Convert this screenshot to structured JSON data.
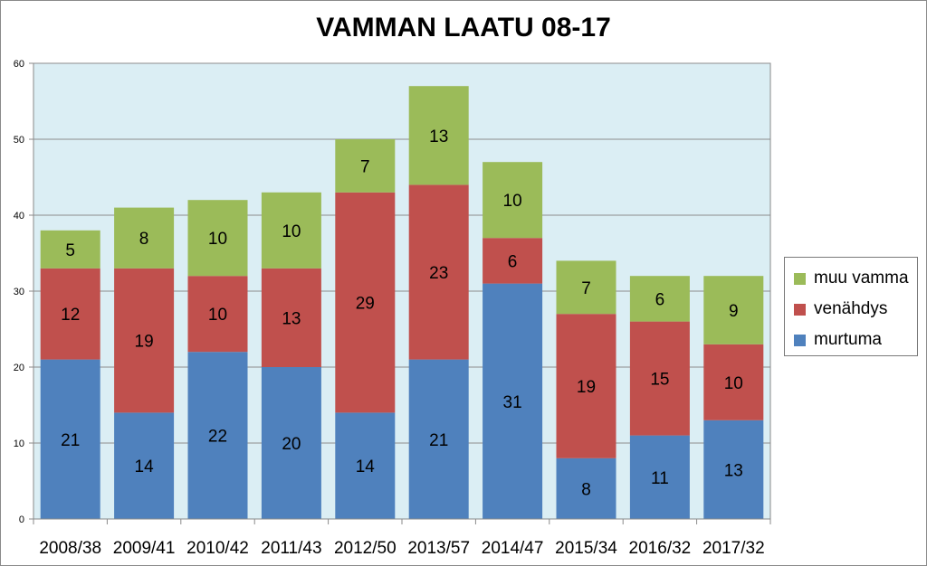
{
  "chart_data": {
    "type": "bar",
    "stacked": true,
    "title": "VAMMAN LAATU 08-17",
    "categories": [
      "2008/38",
      "2009/41",
      "2010/42",
      "2011/43",
      "2012/50",
      "2013/57",
      "2014/47",
      "2015/34",
      "2016/32",
      "2017/32"
    ],
    "series": [
      {
        "name": "murtuma",
        "color": "#4f81bd",
        "values": [
          21,
          14,
          22,
          20,
          14,
          21,
          31,
          8,
          11,
          13
        ]
      },
      {
        "name": "venähdys",
        "color": "#c0504d",
        "values": [
          12,
          19,
          10,
          13,
          29,
          23,
          6,
          19,
          15,
          10
        ]
      },
      {
        "name": "muu vamma",
        "color": "#9bbb59",
        "values": [
          5,
          8,
          10,
          10,
          7,
          13,
          10,
          7,
          6,
          9
        ]
      }
    ],
    "ylim": [
      0,
      60
    ],
    "yticks": [
      0,
      10,
      20,
      30,
      40,
      50,
      60
    ],
    "grid": true,
    "plot_background": "#dbeef4",
    "legend_position": "right",
    "legend_order": [
      "muu vamma",
      "venähdys",
      "murtuma"
    ],
    "data_labels": true
  }
}
